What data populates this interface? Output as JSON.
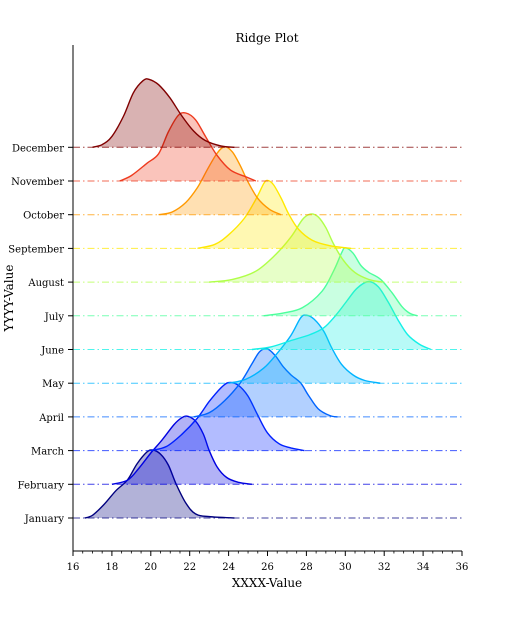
{
  "chart_data": {
    "type": "ridge",
    "title": "Ridge Plot",
    "xlabel": "XXXX-Value",
    "ylabel": "YYYY-Value",
    "xlim": [
      16,
      36
    ],
    "x_ticks": [
      16,
      18,
      20,
      22,
      24,
      26,
      28,
      30,
      32,
      34,
      36
    ],
    "grid": false,
    "series": [
      {
        "name": "January",
        "color": "#00007f",
        "curve": [
          [
            16.6,
            0
          ],
          [
            17.0,
            0.04
          ],
          [
            17.6,
            0.2
          ],
          [
            18.2,
            0.4
          ],
          [
            18.8,
            0.56
          ],
          [
            19.3,
            0.8
          ],
          [
            19.8,
            0.97
          ],
          [
            20.1,
            1.0
          ],
          [
            20.5,
            0.94
          ],
          [
            20.9,
            0.78
          ],
          [
            21.3,
            0.5
          ],
          [
            21.8,
            0.22
          ],
          [
            22.3,
            0.06
          ],
          [
            23.0,
            0.02
          ],
          [
            24.3,
            0
          ]
        ]
      },
      {
        "name": "February",
        "color": "#0000e0",
        "curve": [
          [
            18.0,
            0
          ],
          [
            18.8,
            0.06
          ],
          [
            19.4,
            0.24
          ],
          [
            20.0,
            0.46
          ],
          [
            20.6,
            0.66
          ],
          [
            21.2,
            0.88
          ],
          [
            21.6,
            0.98
          ],
          [
            21.9,
            1.0
          ],
          [
            22.3,
            0.93
          ],
          [
            22.7,
            0.74
          ],
          [
            23.0,
            0.5
          ],
          [
            23.4,
            0.26
          ],
          [
            23.9,
            0.1
          ],
          [
            24.5,
            0.03
          ],
          [
            25.2,
            0
          ]
        ]
      },
      {
        "name": "March",
        "color": "#0020ff",
        "curve": [
          [
            20.0,
            0
          ],
          [
            20.8,
            0.06
          ],
          [
            21.6,
            0.24
          ],
          [
            22.4,
            0.48
          ],
          [
            23.0,
            0.72
          ],
          [
            23.6,
            0.92
          ],
          [
            24.0,
            1.0
          ],
          [
            24.5,
            0.96
          ],
          [
            25.0,
            0.8
          ],
          [
            25.5,
            0.52
          ],
          [
            26.0,
            0.26
          ],
          [
            26.6,
            0.1
          ],
          [
            27.2,
            0.04
          ],
          [
            27.9,
            0
          ]
        ]
      },
      {
        "name": "April",
        "color": "#0064ff",
        "curve": [
          [
            22.2,
            0
          ],
          [
            23.0,
            0.06
          ],
          [
            23.8,
            0.24
          ],
          [
            24.6,
            0.5
          ],
          [
            25.2,
            0.78
          ],
          [
            25.6,
            0.96
          ],
          [
            26.0,
            1.0
          ],
          [
            26.4,
            0.9
          ],
          [
            26.8,
            0.74
          ],
          [
            27.2,
            0.62
          ],
          [
            27.7,
            0.5
          ],
          [
            28.1,
            0.32
          ],
          [
            28.6,
            0.12
          ],
          [
            29.2,
            0.02
          ],
          [
            29.6,
            0
          ]
        ]
      },
      {
        "name": "May",
        "color": "#00b4ff",
        "curve": [
          [
            24.0,
            0
          ],
          [
            24.9,
            0.06
          ],
          [
            25.8,
            0.22
          ],
          [
            26.5,
            0.44
          ],
          [
            27.2,
            0.7
          ],
          [
            27.7,
            0.96
          ],
          [
            28.0,
            1.0
          ],
          [
            28.4,
            0.94
          ],
          [
            28.9,
            0.76
          ],
          [
            29.3,
            0.52
          ],
          [
            29.8,
            0.28
          ],
          [
            30.4,
            0.12
          ],
          [
            31.0,
            0.04
          ],
          [
            31.8,
            0
          ]
        ]
      },
      {
        "name": "June",
        "color": "#14f0e6",
        "curve": [
          [
            25.2,
            0
          ],
          [
            26.2,
            0.04
          ],
          [
            27.3,
            0.14
          ],
          [
            28.2,
            0.22
          ],
          [
            28.9,
            0.32
          ],
          [
            29.5,
            0.5
          ],
          [
            30.1,
            0.72
          ],
          [
            30.6,
            0.9
          ],
          [
            31.2,
            1.0
          ],
          [
            31.7,
            0.92
          ],
          [
            32.2,
            0.7
          ],
          [
            32.7,
            0.44
          ],
          [
            33.2,
            0.22
          ],
          [
            33.8,
            0.08
          ],
          [
            34.4,
            0
          ]
        ]
      },
      {
        "name": "July",
        "color": "#4cff9c",
        "curve": [
          [
            25.8,
            0
          ],
          [
            26.8,
            0.04
          ],
          [
            27.8,
            0.12
          ],
          [
            28.8,
            0.36
          ],
          [
            29.4,
            0.66
          ],
          [
            29.8,
            0.92
          ],
          [
            30.0,
            1.0
          ],
          [
            30.4,
            0.92
          ],
          [
            30.8,
            0.74
          ],
          [
            31.2,
            0.64
          ],
          [
            31.8,
            0.54
          ],
          [
            32.4,
            0.34
          ],
          [
            32.9,
            0.14
          ],
          [
            33.3,
            0.04
          ],
          [
            33.7,
            0
          ]
        ]
      },
      {
        "name": "August",
        "color": "#b0ff48",
        "curve": [
          [
            23.0,
            0
          ],
          [
            24.2,
            0.04
          ],
          [
            25.4,
            0.16
          ],
          [
            26.4,
            0.4
          ],
          [
            27.2,
            0.66
          ],
          [
            27.8,
            0.92
          ],
          [
            28.2,
            1.0
          ],
          [
            28.6,
            0.96
          ],
          [
            29.0,
            0.8
          ],
          [
            29.4,
            0.56
          ],
          [
            29.9,
            0.32
          ],
          [
            30.5,
            0.14
          ],
          [
            31.2,
            0.04
          ],
          [
            31.9,
            0
          ]
        ]
      },
      {
        "name": "September",
        "color": "#ffe800",
        "curve": [
          [
            22.4,
            0
          ],
          [
            23.3,
            0.06
          ],
          [
            24.0,
            0.2
          ],
          [
            24.8,
            0.44
          ],
          [
            25.4,
            0.72
          ],
          [
            25.8,
            0.95
          ],
          [
            26.0,
            1.0
          ],
          [
            26.3,
            0.94
          ],
          [
            26.7,
            0.74
          ],
          [
            27.1,
            0.5
          ],
          [
            27.6,
            0.28
          ],
          [
            28.3,
            0.12
          ],
          [
            29.2,
            0.04
          ],
          [
            30.3,
            0
          ]
        ]
      },
      {
        "name": "October",
        "color": "#ff9900",
        "curve": [
          [
            20.4,
            0
          ],
          [
            21.1,
            0.04
          ],
          [
            21.8,
            0.18
          ],
          [
            22.4,
            0.4
          ],
          [
            22.9,
            0.66
          ],
          [
            23.4,
            0.9
          ],
          [
            23.8,
            1.0
          ],
          [
            24.2,
            0.92
          ],
          [
            24.6,
            0.72
          ],
          [
            25.0,
            0.48
          ],
          [
            25.5,
            0.24
          ],
          [
            26.1,
            0.08
          ],
          [
            26.7,
            0
          ]
        ]
      },
      {
        "name": "November",
        "color": "#ee3a1e",
        "curve": [
          [
            18.4,
            0
          ],
          [
            19.0,
            0.08
          ],
          [
            19.8,
            0.26
          ],
          [
            20.4,
            0.4
          ],
          [
            20.9,
            0.72
          ],
          [
            21.4,
            0.96
          ],
          [
            21.8,
            1.0
          ],
          [
            22.3,
            0.9
          ],
          [
            22.8,
            0.66
          ],
          [
            23.4,
            0.38
          ],
          [
            24.1,
            0.16
          ],
          [
            24.9,
            0.06
          ],
          [
            25.4,
            0
          ]
        ]
      },
      {
        "name": "December",
        "color": "#800000",
        "curve": [
          [
            17.0,
            0
          ],
          [
            17.5,
            0.04
          ],
          [
            18.0,
            0.16
          ],
          [
            18.6,
            0.46
          ],
          [
            19.1,
            0.8
          ],
          [
            19.6,
            0.98
          ],
          [
            19.9,
            1.0
          ],
          [
            20.4,
            0.92
          ],
          [
            21.0,
            0.72
          ],
          [
            21.6,
            0.46
          ],
          [
            22.2,
            0.24
          ],
          [
            22.8,
            0.1
          ],
          [
            23.6,
            0.02
          ],
          [
            24.3,
            0
          ]
        ]
      }
    ]
  }
}
